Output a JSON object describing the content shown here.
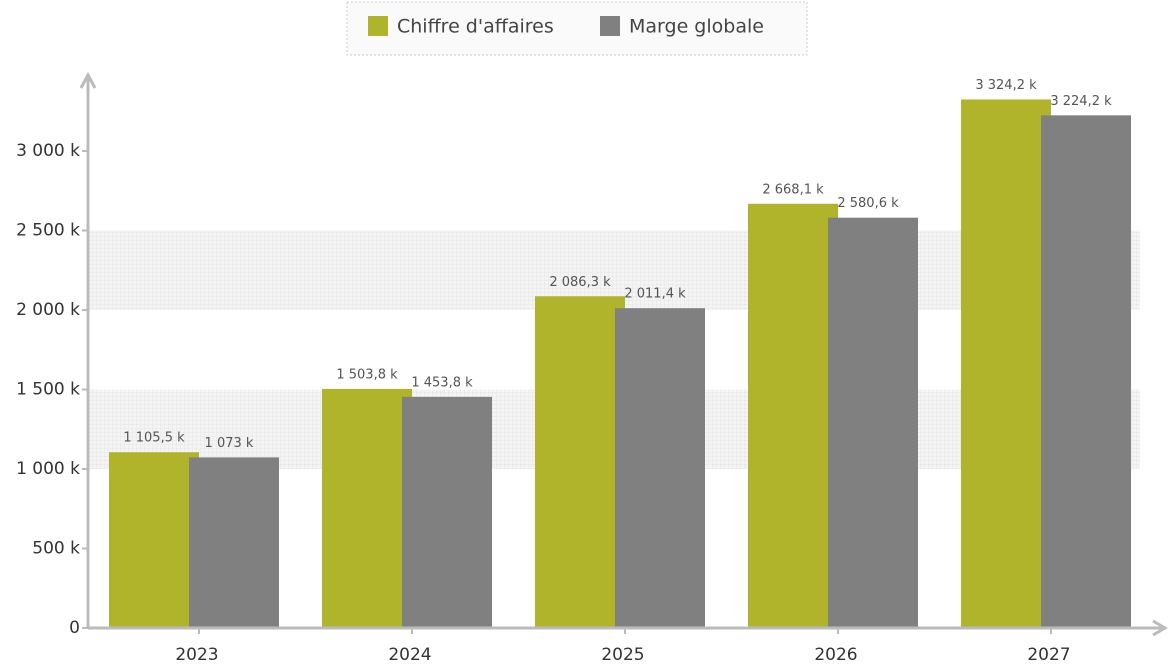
{
  "chart_data": {
    "type": "bar",
    "categories": [
      "2023",
      "2024",
      "2025",
      "2026",
      "2027"
    ],
    "series": [
      {
        "name": "Chiffre d'affaires",
        "color": "#afb42b",
        "values": [
          1105.5,
          1503.8,
          2086.3,
          2668.1,
          3324.2
        ],
        "value_labels": [
          "1 105,5 k",
          "1 503,8 k",
          "2 086,3 k",
          "2 668,1 k",
          "3 324,2 k"
        ]
      },
      {
        "name": "Marge globale",
        "color": "#808080",
        "values": [
          1073,
          1453.8,
          2011.4,
          2580.6,
          3224.2
        ],
        "value_labels": [
          "1 073 k",
          "1 453,8 k",
          "2 011,4 k",
          "2 580,6 k",
          "3 224,2 k"
        ]
      }
    ],
    "ylim": [
      0,
      3500
    ],
    "yticks": [
      0,
      {
        "value": 500,
        "label": "500 k"
      },
      {
        "value": 1000,
        "label": "1 000 k"
      },
      {
        "value": 1500,
        "label": "1 500 k"
      },
      {
        "value": 2000,
        "label": "2 000 k"
      },
      {
        "value": 2500,
        "label": "2 500 k"
      },
      {
        "value": 3000,
        "label": "3 000 k"
      }
    ],
    "legend": "top"
  }
}
